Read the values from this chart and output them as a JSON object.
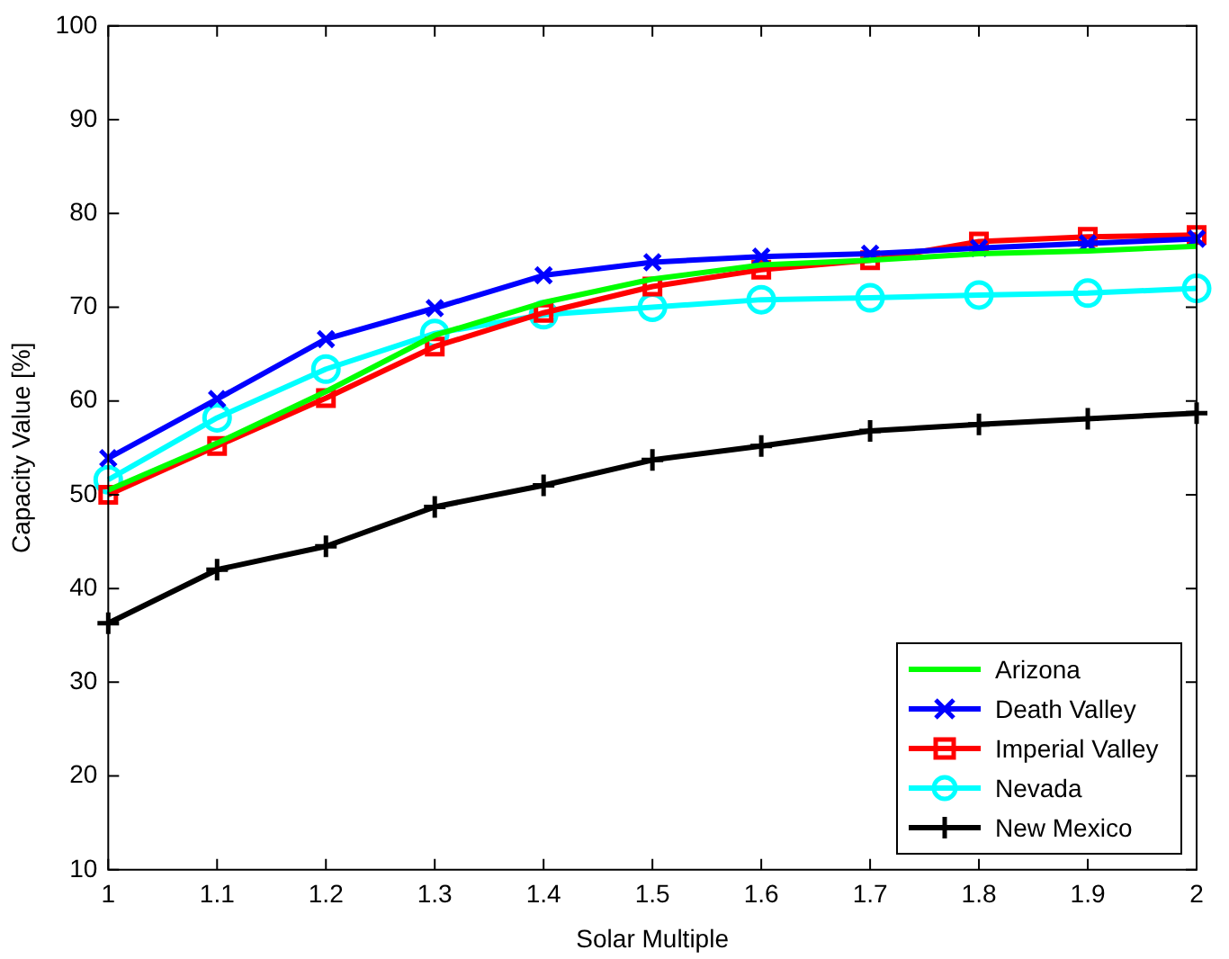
{
  "chart_data": {
    "type": "line",
    "xlabel": "Solar Multiple",
    "ylabel": "Capacity Value [%]",
    "x": [
      1,
      1.1,
      1.2,
      1.3,
      1.4,
      1.5,
      1.6,
      1.7,
      1.8,
      1.9,
      2
    ],
    "xlim": [
      1,
      2
    ],
    "xticks": [
      1,
      1.1,
      1.2,
      1.3,
      1.4,
      1.5,
      1.6,
      1.7,
      1.8,
      1.9,
      2
    ],
    "ylim": [
      10,
      100
    ],
    "yticks": [
      10,
      20,
      30,
      40,
      50,
      60,
      70,
      80,
      90,
      100
    ],
    "grid": false,
    "legend": "bottom right",
    "line_style": "solid",
    "series": [
      {
        "name": "Arizona",
        "color": "#00ff00",
        "marker": "none",
        "values": [
          50.5,
          55.5,
          61,
          67,
          70.5,
          73,
          74.5,
          75,
          75.7,
          76,
          76.5
        ]
      },
      {
        "name": "Death Valley",
        "color": "#0000ff",
        "marker": "x",
        "values": [
          53.9,
          60.2,
          66.6,
          69.9,
          73.4,
          74.8,
          75.4,
          75.7,
          76.3,
          76.8,
          77.3
        ]
      },
      {
        "name": "Imperial Valley",
        "color": "#ff0000",
        "marker": "square",
        "values": [
          50,
          55.2,
          60.3,
          65.8,
          69.4,
          72.2,
          74,
          75,
          77,
          77.5,
          77.7
        ]
      },
      {
        "name": "Nevada",
        "color": "#00ffff",
        "marker": "circle",
        "values": [
          51.6,
          58.2,
          63.4,
          67.2,
          69.2,
          70,
          70.8,
          71,
          71.3,
          71.5,
          72
        ]
      },
      {
        "name": "New Mexico",
        "color": "#000000",
        "marker": "cross",
        "values": [
          36.3,
          42,
          44.5,
          48.7,
          51,
          53.7,
          55.2,
          56.8,
          57.5,
          58.1,
          58.7
        ]
      }
    ]
  }
}
